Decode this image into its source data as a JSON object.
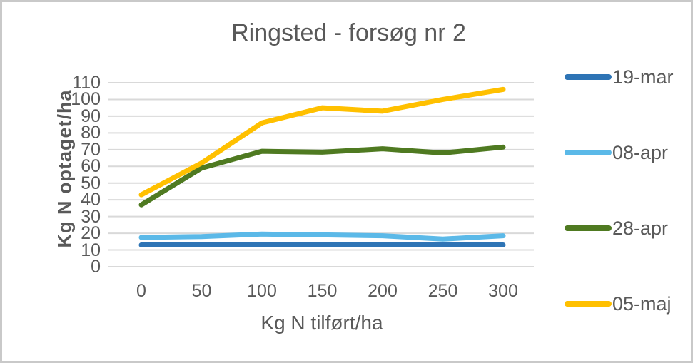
{
  "chart_data": {
    "type": "line",
    "title": "Ringsted - forsøg nr 2",
    "xlabel": "Kg N tilført/ha",
    "ylabel": "Kg N optaget/ha",
    "categories": [
      0,
      50,
      100,
      150,
      200,
      250,
      300
    ],
    "series": [
      {
        "name": "19-mar",
        "color": "#2E74B5",
        "values": [
          13,
          13,
          13,
          13,
          13,
          13,
          13
        ]
      },
      {
        "name": "08-apr",
        "color": "#5BB9E8",
        "values": [
          17.5,
          18,
          19.5,
          19,
          18.5,
          16.5,
          18.5
        ]
      },
      {
        "name": "28-apr",
        "color": "#4F7A21",
        "values": [
          37,
          59,
          69,
          68.5,
          70.5,
          68,
          71.5
        ]
      },
      {
        "name": "05-maj",
        "color": "#FFC000",
        "values": [
          43,
          62,
          86,
          95,
          93,
          100,
          106
        ]
      }
    ],
    "ylim": [
      0,
      110
    ],
    "ytick_step": 10,
    "yticks": [
      0,
      10,
      20,
      30,
      40,
      50,
      60,
      70,
      80,
      90,
      100,
      110
    ],
    "grid": "horizontal",
    "legend_position": "right"
  },
  "colors": {
    "gridline": "#D9D9D9",
    "text": "#595959",
    "frame": "#C9C9C9",
    "background": "#FFFFFF"
  }
}
